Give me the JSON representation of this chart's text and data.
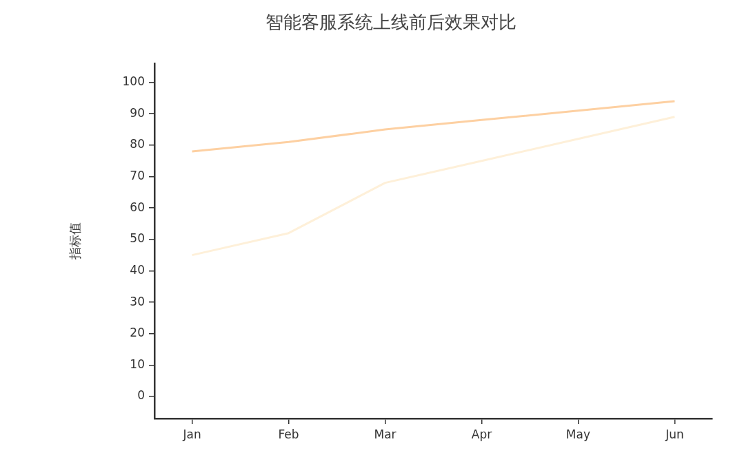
{
  "chart_data": {
    "type": "line",
    "title": "智能客服系统上线前后效果对比",
    "ylabel": "指标值",
    "categories": [
      "Jan",
      "Feb",
      "Mar",
      "Apr",
      "May",
      "Jun"
    ],
    "series": [
      {
        "color": "#fdd0a2",
        "values": [
          78,
          81,
          85,
          88,
          91,
          94
        ]
      },
      {
        "color": "#fef0d9",
        "values": [
          45,
          52,
          68,
          75,
          82,
          89
        ]
      }
    ],
    "ylim": [
      -7,
      106
    ],
    "yticks": [
      0,
      10,
      20,
      30,
      40,
      50,
      60,
      70,
      80,
      90,
      100
    ],
    "grid": false,
    "legend": false,
    "marker": "none",
    "line_style": "solid"
  }
}
